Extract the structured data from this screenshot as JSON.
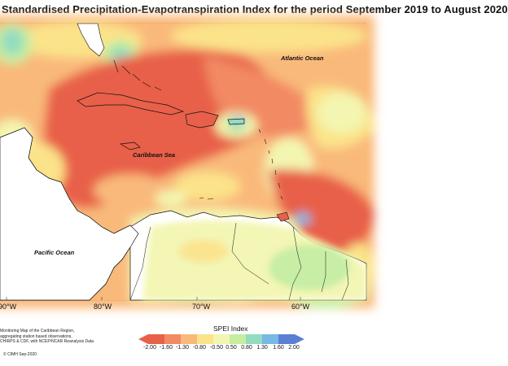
{
  "title": "Standardised Precipitation-Evapotranspiration Index for the period September 2019 to August 2020",
  "map": {
    "labels": {
      "atlantic": "Atlantic Ocean",
      "caribbean": "Caribbean Sea",
      "pacific": "Pacific Ocean"
    },
    "longitudes": [
      "90°W",
      "80°W",
      "70°W",
      "60°W"
    ]
  },
  "notes": {
    "line1": "Monitoring Map of the Caribbean Region,",
    "line2": "aggregating station based observations,",
    "line3": "CHIRPS & CDF, with NCEP/NCAR Reanalysis Data"
  },
  "credit": "© CIMH Sep-2020",
  "legend": {
    "title": "SPEI Index",
    "ticks": [
      "-2.00",
      "-1.60",
      "-1.30",
      "-0.80",
      "-0.50",
      "0.50",
      "0.80",
      "1.30",
      "1.60",
      "2.00"
    ],
    "colors": {
      "extremely_dry": "#e8604a",
      "severely_dry": "#f28a63",
      "moderately_dry": "#f9b97a",
      "slightly_dry": "#fbe38a",
      "normal": "#f3f6b0",
      "slightly_wet": "#c5eea0",
      "moderately_wet": "#93dcc0",
      "very_wet": "#76b9e3",
      "extremely_wet": "#5c7fd6"
    }
  }
}
